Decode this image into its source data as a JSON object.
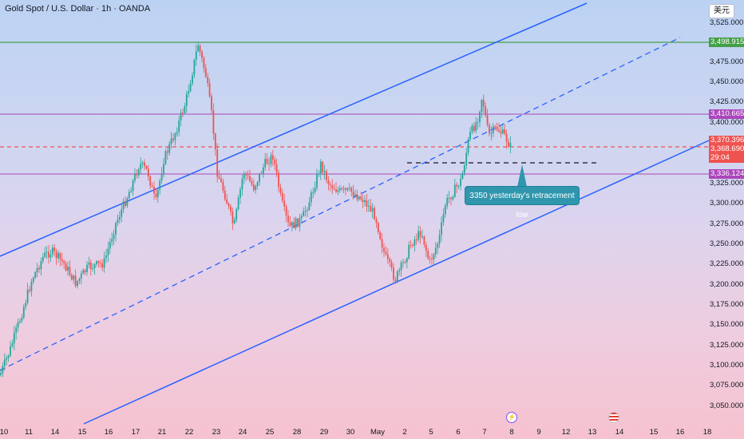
{
  "header": {
    "title": "Gold Spot / U.S. Dollar · 1h · OANDA",
    "currency_button": "美元"
  },
  "colors": {
    "up": "#26a69a",
    "down": "#ef5350",
    "channel": "#2962ff",
    "resistance_green": "#43a047",
    "support_purple": "#ab47bc",
    "current_dashed": "#ef5350",
    "callout": "#2f96ad"
  },
  "price_axis": {
    "ticks": [
      "3,525.000",
      "3,475.000",
      "3,450.000",
      "3,425.000",
      "3,400.000",
      "3,325.000",
      "3,300.000",
      "3,275.000",
      "3,250.000",
      "3,225.000",
      "3,200.000",
      "3,175.000",
      "3,150.000",
      "3,125.000",
      "3,100.000",
      "3,075.000",
      "3,050.000"
    ],
    "tags": {
      "resistance": "3,498.915",
      "upper_level": "3,410.665",
      "level": "3,370.396",
      "last_price": "3,368.690",
      "countdown": "29:04",
      "support": "3,336.124"
    }
  },
  "time_axis": {
    "labels": [
      "10",
      "11",
      "14",
      "15",
      "16",
      "17",
      "21",
      "22",
      "23",
      "24",
      "25",
      "28",
      "29",
      "30",
      "May",
      "2",
      "5",
      "6",
      "7",
      "8",
      "9",
      "12",
      "13",
      "14",
      "15",
      "16",
      "18"
    ]
  },
  "annotation": {
    "callout_text": "3350 yesterday's retracement low"
  },
  "events": {
    "flash_icon": "lightning-icon",
    "flag_icon": "us-flag-icon"
  }
}
